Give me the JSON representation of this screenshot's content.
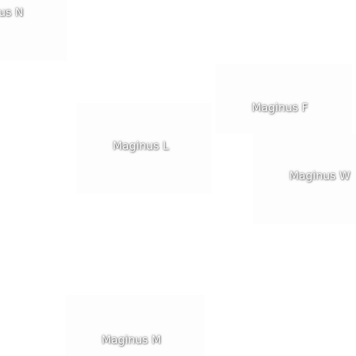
{
  "map": {
    "labels": [
      {
        "id": "n",
        "text": "us N"
      },
      {
        "id": "f",
        "text": "Maginus F"
      },
      {
        "id": "l",
        "text": "Maginus L"
      },
      {
        "id": "w",
        "text": "Maginus W"
      },
      {
        "id": "m",
        "text": "Maginus M"
      }
    ]
  }
}
